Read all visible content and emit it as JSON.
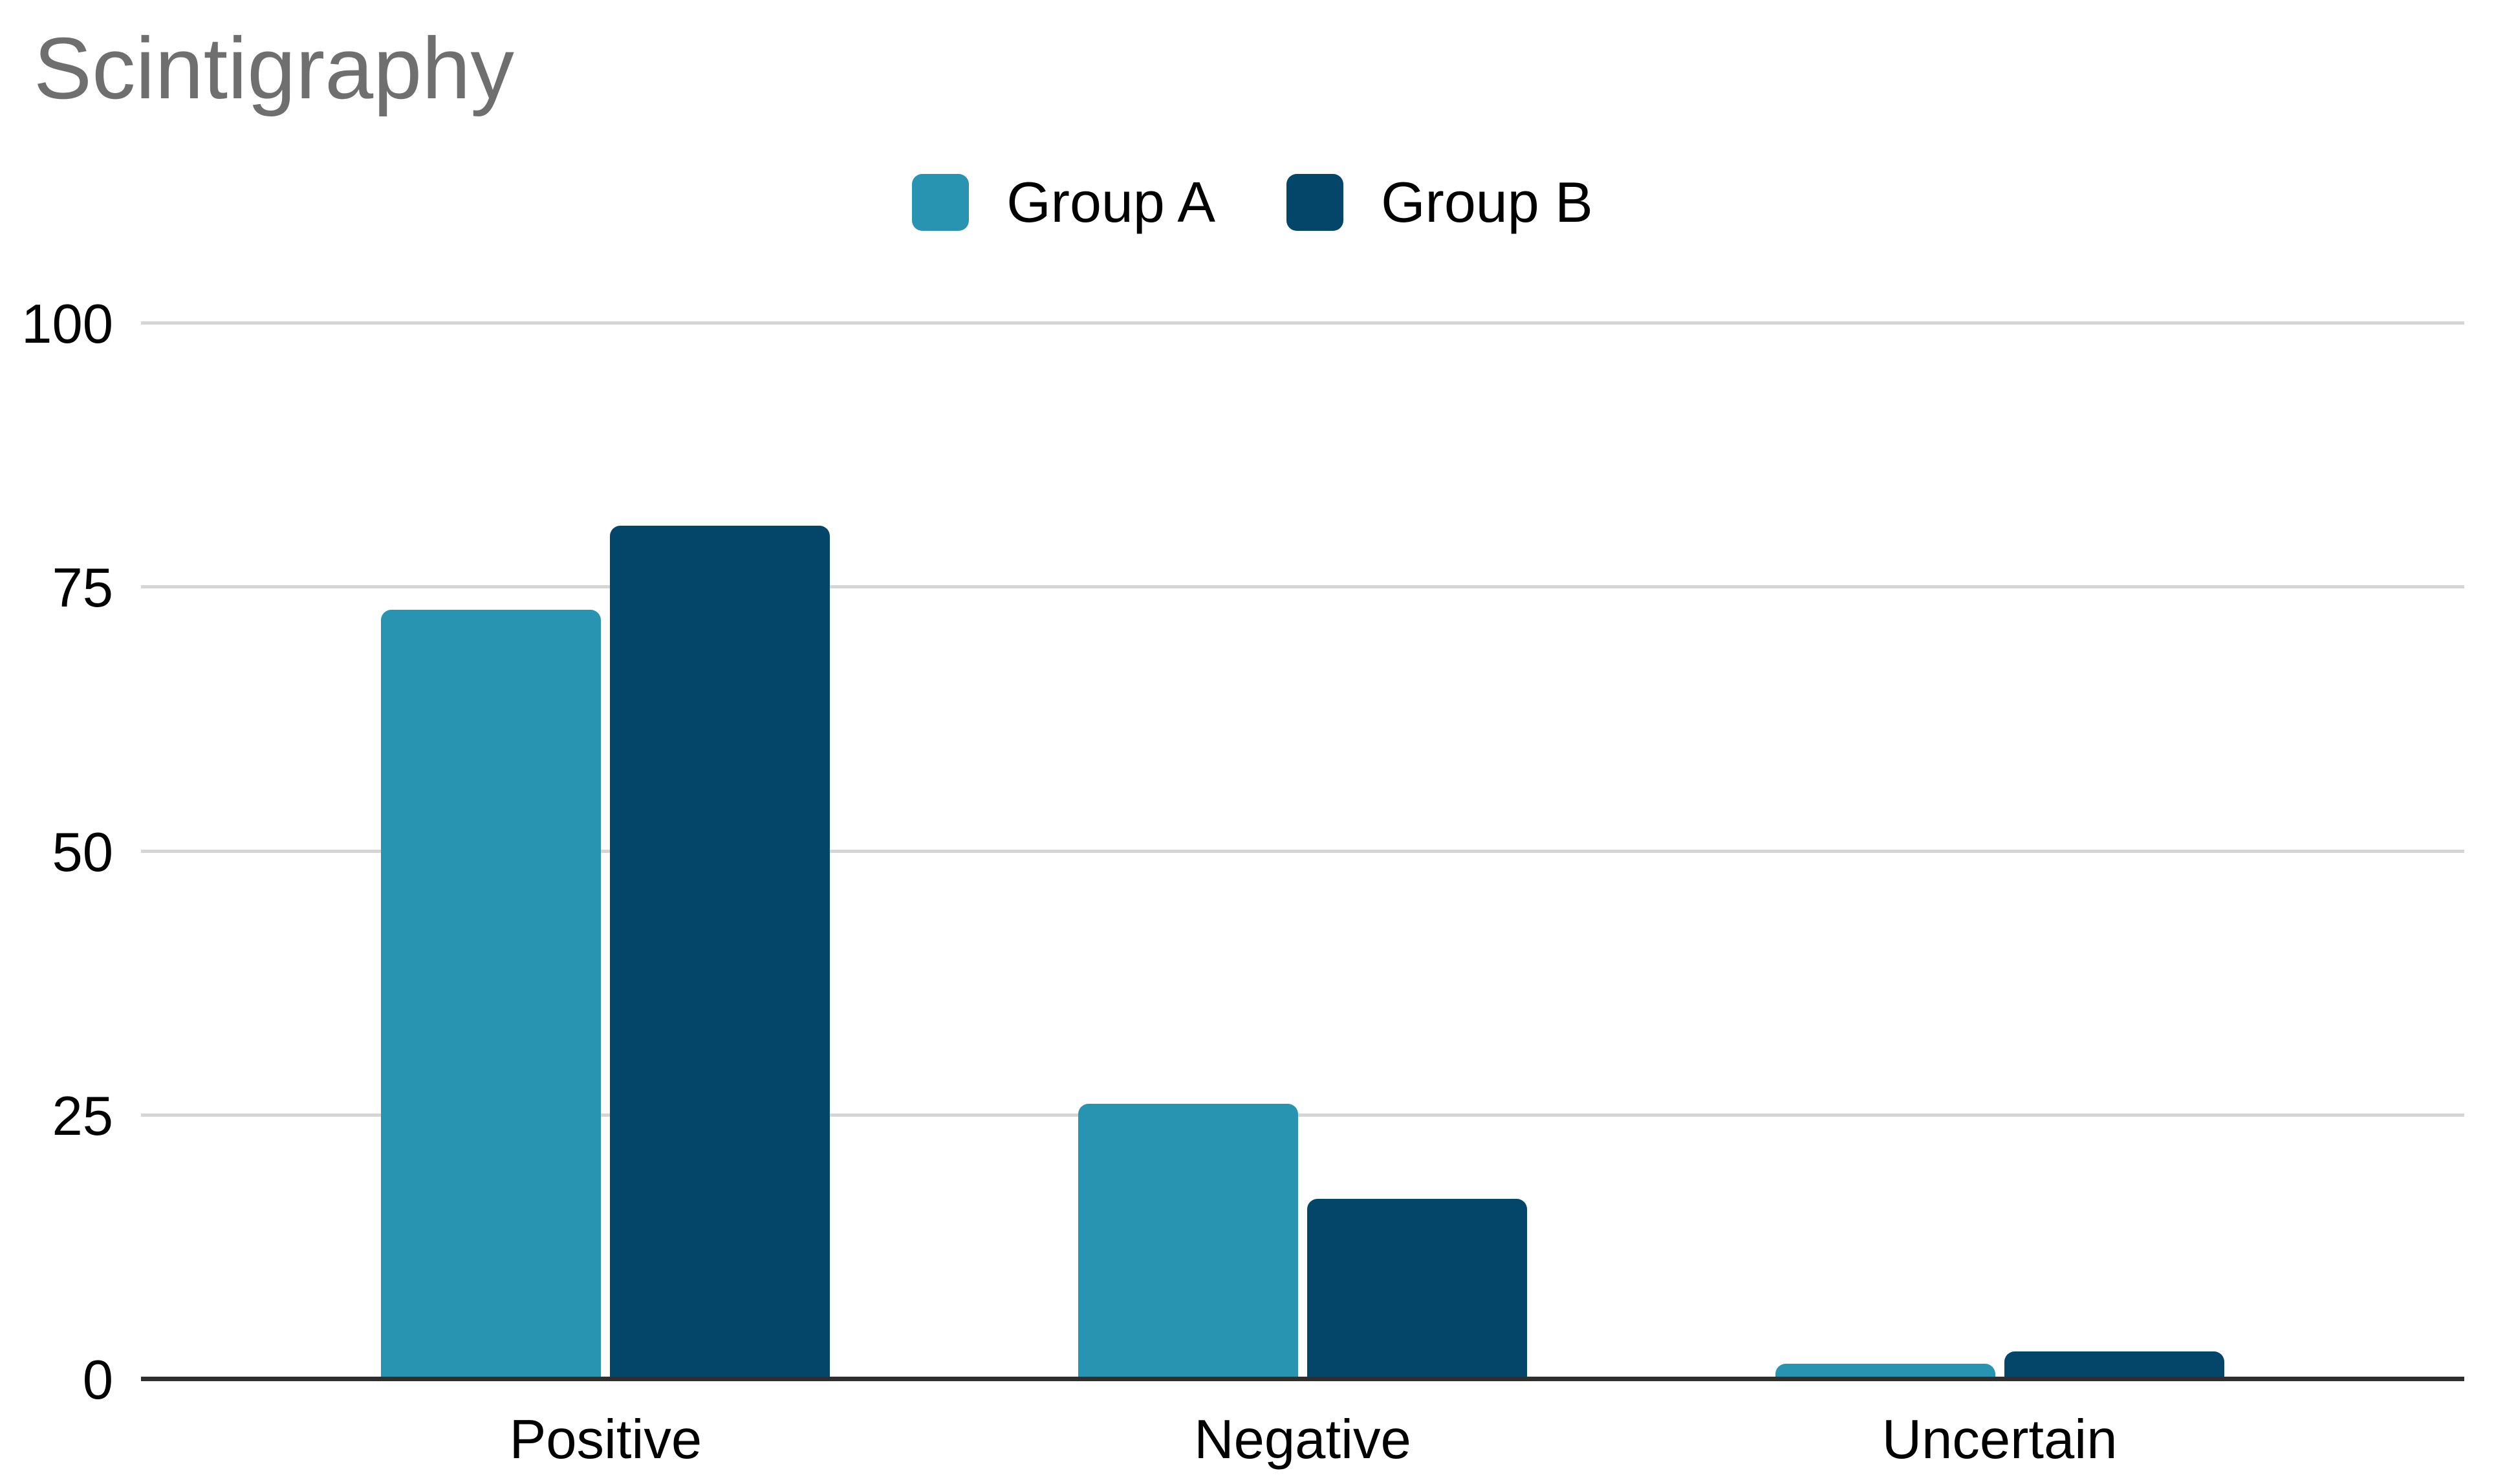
{
  "chart_data": {
    "type": "bar",
    "title": "Scintigraphy",
    "title_color": "#6f6f6f",
    "categories": [
      "Positive",
      "Negative",
      "Uncertain"
    ],
    "series": [
      {
        "name": "Group A",
        "color": "#2994B2",
        "values": [
          72.8,
          26,
          1.4
        ]
      },
      {
        "name": "Group B",
        "color": "#03466A",
        "values": [
          80.8,
          17,
          2.6
        ]
      }
    ],
    "xlabel": "",
    "ylabel": "",
    "y_ticks": [
      0,
      25,
      50,
      75,
      100
    ],
    "ylim": [
      0,
      100
    ],
    "grid": "horizontal",
    "gridline_color": "#d5d5d5",
    "axis_line_color": "#2f2f2f",
    "legend_position": "top-center",
    "background_color": "#ffffff"
  }
}
